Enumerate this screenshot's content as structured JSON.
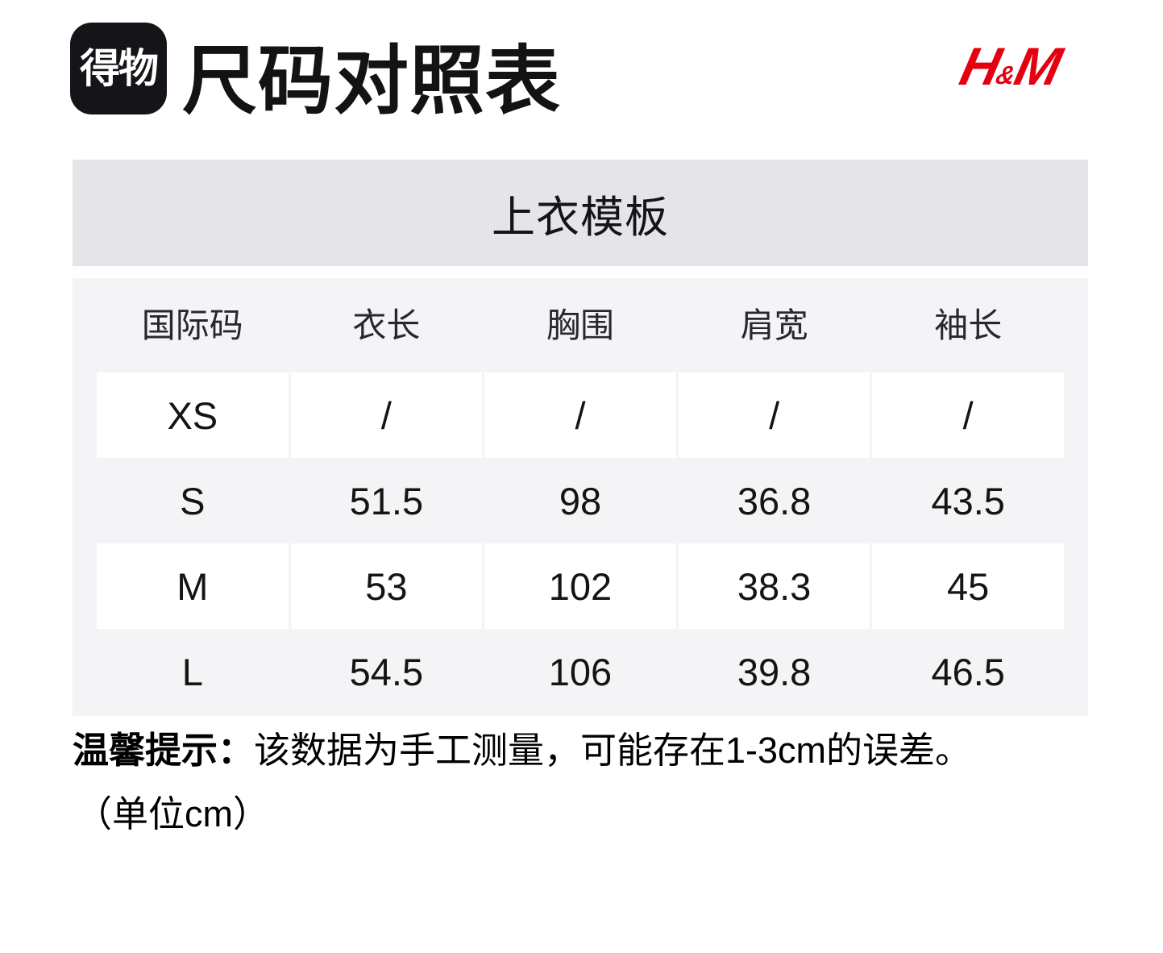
{
  "header": {
    "dewu_logo_text": "得物",
    "title": "尺码对照表",
    "brand": {
      "full": "H&M",
      "h": "H",
      "amp": "&",
      "m": "M",
      "color": "#e50010"
    }
  },
  "banner": {
    "title": "上衣模板",
    "background": "#e4e4e9"
  },
  "size_table": {
    "background": "#f4f4f7",
    "row_highlight_color": "#ffffff",
    "columns": [
      "国际码",
      "衣长",
      "胸围",
      "肩宽",
      "袖长"
    ],
    "rows": [
      {
        "size": "XS",
        "values": [
          "/",
          "/",
          "/",
          "/"
        ]
      },
      {
        "size": "S",
        "values": [
          "51.5",
          "98",
          "36.8",
          "43.5"
        ]
      },
      {
        "size": "M",
        "values": [
          "53",
          "102",
          "38.3",
          "45"
        ]
      },
      {
        "size": "L",
        "values": [
          "54.5",
          "106",
          "39.8",
          "46.5"
        ]
      }
    ]
  },
  "note": {
    "label": "温馨提示：",
    "text": "该数据为手工测量，可能存在1-3cm的误差。",
    "unit": "（单位cm）"
  }
}
